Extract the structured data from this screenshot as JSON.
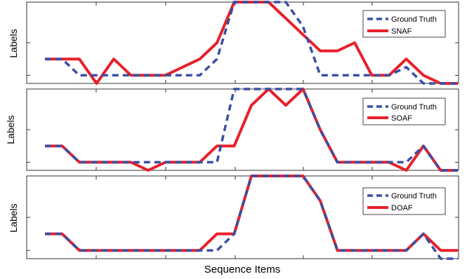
{
  "colors": {
    "ground_truth": "#3a4fa3",
    "prediction": "#e8202a"
  },
  "chart_data": [
    {
      "type": "line",
      "ylabel": "Labels",
      "xlabel": "",
      "x": [
        0,
        1,
        2,
        3,
        4,
        5,
        6,
        7,
        8,
        9,
        10,
        11,
        12,
        13,
        14,
        15,
        16,
        17,
        18,
        19,
        20,
        21,
        22,
        23,
        24
      ],
      "ylim": [
        0.5,
        5.5
      ],
      "legend": "top-right",
      "series": [
        {
          "name": "Ground Truth",
          "style": "dashed",
          "values": [
            2,
            2,
            1,
            1,
            1,
            1,
            1,
            1,
            1,
            1,
            2,
            5.5,
            5.5,
            5.5,
            5.5,
            4,
            1,
            1,
            1,
            1,
            1,
            1.5,
            0.5,
            0.5,
            0.5
          ]
        },
        {
          "name": "SNAF",
          "style": "solid",
          "values": [
            2,
            2,
            2,
            0.5,
            2,
            1,
            1,
            1,
            1.5,
            2,
            3,
            5.5,
            5.5,
            5.5,
            4.5,
            3.5,
            2.5,
            2.5,
            3,
            1,
            1,
            2,
            1,
            0.5,
            0.5
          ]
        }
      ]
    },
    {
      "type": "line",
      "ylabel": "Labels",
      "xlabel": "",
      "x": [
        0,
        1,
        2,
        3,
        4,
        5,
        6,
        7,
        8,
        9,
        10,
        11,
        12,
        13,
        14,
        15,
        16,
        17,
        18,
        19,
        20,
        21,
        22,
        23,
        24
      ],
      "ylim": [
        0.5,
        5.5
      ],
      "legend": "top-right",
      "series": [
        {
          "name": "Ground Truth",
          "style": "dashed",
          "values": [
            2,
            2,
            1,
            1,
            1,
            1,
            1,
            1,
            1,
            1,
            1,
            5.5,
            5.5,
            5.5,
            5.5,
            5.5,
            3,
            1,
            1,
            1,
            1,
            1,
            2,
            0.5,
            0.5
          ]
        },
        {
          "name": "SOAF",
          "style": "solid",
          "values": [
            2,
            2,
            1,
            1,
            1,
            1,
            0.5,
            1,
            1,
            1,
            2,
            2,
            4.5,
            5.5,
            4.5,
            5.5,
            3,
            1,
            1,
            1,
            1,
            0.5,
            2,
            0.5,
            0.5
          ]
        }
      ]
    },
    {
      "type": "line",
      "ylabel": "Labels",
      "xlabel": "Sequence Items",
      "x": [
        0,
        1,
        2,
        3,
        4,
        5,
        6,
        7,
        8,
        9,
        10,
        11,
        12,
        13,
        14,
        15,
        16,
        17,
        18,
        19,
        20,
        21,
        22,
        23,
        24
      ],
      "ylim": [
        0.5,
        5.5
      ],
      "legend": "top-right",
      "series": [
        {
          "name": "Ground Truth",
          "style": "dashed",
          "values": [
            2,
            2,
            1,
            1,
            1,
            1,
            1,
            1,
            1,
            1,
            1,
            2,
            5.5,
            5.5,
            5.5,
            5.5,
            4,
            1,
            1,
            1,
            1,
            1,
            2,
            0.5,
            0.5
          ]
        },
        {
          "name": "DOAF",
          "style": "solid",
          "values": [
            2,
            2,
            1,
            1,
            1,
            1,
            1,
            1,
            1,
            1,
            2,
            2,
            5.5,
            5.5,
            5.5,
            5.5,
            4,
            1,
            1,
            1,
            1,
            1,
            2,
            1,
            1
          ]
        }
      ]
    }
  ]
}
